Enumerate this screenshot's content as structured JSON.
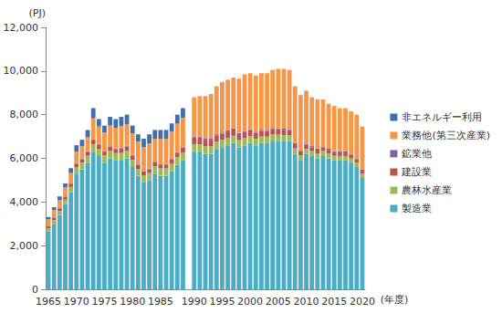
{
  "chart_data": {
    "type": "bar",
    "stacked": true,
    "y_label": "(PJ)",
    "x_label": "(年度)",
    "categories": [
      "1965",
      null,
      null,
      null,
      null,
      "1970",
      null,
      null,
      null,
      null,
      "1975",
      null,
      null,
      null,
      null,
      "1980",
      null,
      null,
      null,
      null,
      "1985",
      null,
      null,
      null,
      null,
      null,
      "1990",
      null,
      null,
      null,
      null,
      "1995",
      null,
      null,
      null,
      null,
      "2000",
      null,
      null,
      null,
      null,
      "2005",
      null,
      null,
      null,
      null,
      "2010",
      null,
      null,
      null,
      null,
      "2015",
      null,
      null,
      null,
      null,
      "2020"
    ],
    "ylim": [
      0,
      12000
    ],
    "yticks": [
      0,
      {
        "value": 2000,
        "label": "2,000"
      },
      {
        "value": 4000,
        "label": "4,000"
      },
      {
        "value": 6000,
        "label": "6,000"
      },
      {
        "value": 8000,
        "label": "8,000"
      },
      {
        "value": 10000,
        "label": "10,000"
      },
      {
        "value": 12000,
        "label": "12,000"
      }
    ],
    "grid": false,
    "legend": "right",
    "series": [
      {
        "name": "製造業",
        "color": "#4bacc6",
        "values": [
          2650,
          3000,
          3400,
          3900,
          4450,
          5300,
          5500,
          5800,
          6300,
          6100,
          5800,
          6000,
          5900,
          5900,
          6000,
          5600,
          5200,
          4900,
          5000,
          5300,
          5200,
          5200,
          5400,
          5700,
          5900,
          null,
          6300,
          6300,
          6200,
          6200,
          6400,
          6500,
          6600,
          6700,
          6500,
          6600,
          6700,
          6600,
          6700,
          6700,
          6800,
          6800,
          6800,
          6800,
          6200,
          5900,
          6200,
          6100,
          6000,
          6100,
          6000,
          5900,
          5900,
          5900,
          5800,
          5600,
          5100
        ]
      },
      {
        "name": "農林水産業",
        "color": "#9bbb59",
        "values": [
          150,
          170,
          190,
          210,
          240,
          280,
          300,
          320,
          350,
          340,
          330,
          340,
          340,
          350,
          350,
          330,
          320,
          320,
          330,
          340,
          340,
          340,
          350,
          360,
          370,
          null,
          350,
          350,
          350,
          350,
          350,
          340,
          340,
          330,
          330,
          320,
          310,
          300,
          300,
          290,
          290,
          280,
          270,
          260,
          250,
          240,
          240,
          230,
          230,
          230,
          220,
          220,
          210,
          210,
          200,
          200,
          190
        ]
      },
      {
        "name": "建設業",
        "color": "#c0504d",
        "values": [
          80,
          90,
          100,
          110,
          130,
          150,
          160,
          180,
          200,
          190,
          180,
          180,
          180,
          190,
          190,
          180,
          170,
          170,
          170,
          180,
          180,
          180,
          190,
          200,
          210,
          null,
          300,
          300,
          300,
          300,
          300,
          290,
          290,
          290,
          280,
          280,
          280,
          270,
          260,
          260,
          250,
          250,
          240,
          230,
          200,
          190,
          180,
          180,
          170,
          170,
          170,
          160,
          160,
          160,
          160,
          150,
          140
        ]
      },
      {
        "name": "鉱業他",
        "color": "#8064a2",
        "values": [
          30,
          30,
          30,
          30,
          30,
          30,
          30,
          30,
          30,
          30,
          30,
          30,
          30,
          30,
          30,
          30,
          30,
          30,
          30,
          30,
          30,
          30,
          30,
          30,
          30,
          null,
          50,
          50,
          50,
          50,
          50,
          50,
          50,
          50,
          50,
          50,
          50,
          50,
          50,
          50,
          50,
          50,
          50,
          50,
          50,
          50,
          50,
          50,
          50,
          50,
          50,
          50,
          50,
          50,
          50,
          50,
          50
        ]
      },
      {
        "name": "業務他(第三次産業)",
        "color": "#f79646",
        "values": [
          300,
          340,
          380,
          420,
          480,
          550,
          560,
          630,
          950,
          800,
          850,
          950,
          950,
          1000,
          1000,
          1000,
          1050,
          1100,
          1150,
          1050,
          1150,
          1150,
          1250,
          1300,
          1350,
          null,
          1800,
          1850,
          1950,
          2050,
          2200,
          2320,
          2320,
          2330,
          2490,
          2600,
          2560,
          2580,
          2590,
          2600,
          2660,
          2720,
          2740,
          2710,
          2600,
          2520,
          2430,
          2240,
          2250,
          2150,
          2060,
          2070,
          1980,
          1980,
          1940,
          2000,
          1970
        ]
      },
      {
        "name": "非エネルギー利用",
        "color": "#3f6fae",
        "values": [
          100,
          130,
          150,
          180,
          220,
          290,
          300,
          340,
          470,
          340,
          310,
          400,
          400,
          430,
          430,
          360,
          330,
          380,
          420,
          400,
          400,
          400,
          380,
          410,
          440,
          null,
          null,
          null,
          null,
          null,
          null,
          null,
          null,
          null,
          null,
          null,
          null,
          null,
          null,
          null,
          null,
          null,
          null,
          null,
          null,
          null,
          null,
          null,
          null,
          null,
          null,
          null,
          null,
          null,
          null,
          null,
          null
        ]
      }
    ]
  }
}
